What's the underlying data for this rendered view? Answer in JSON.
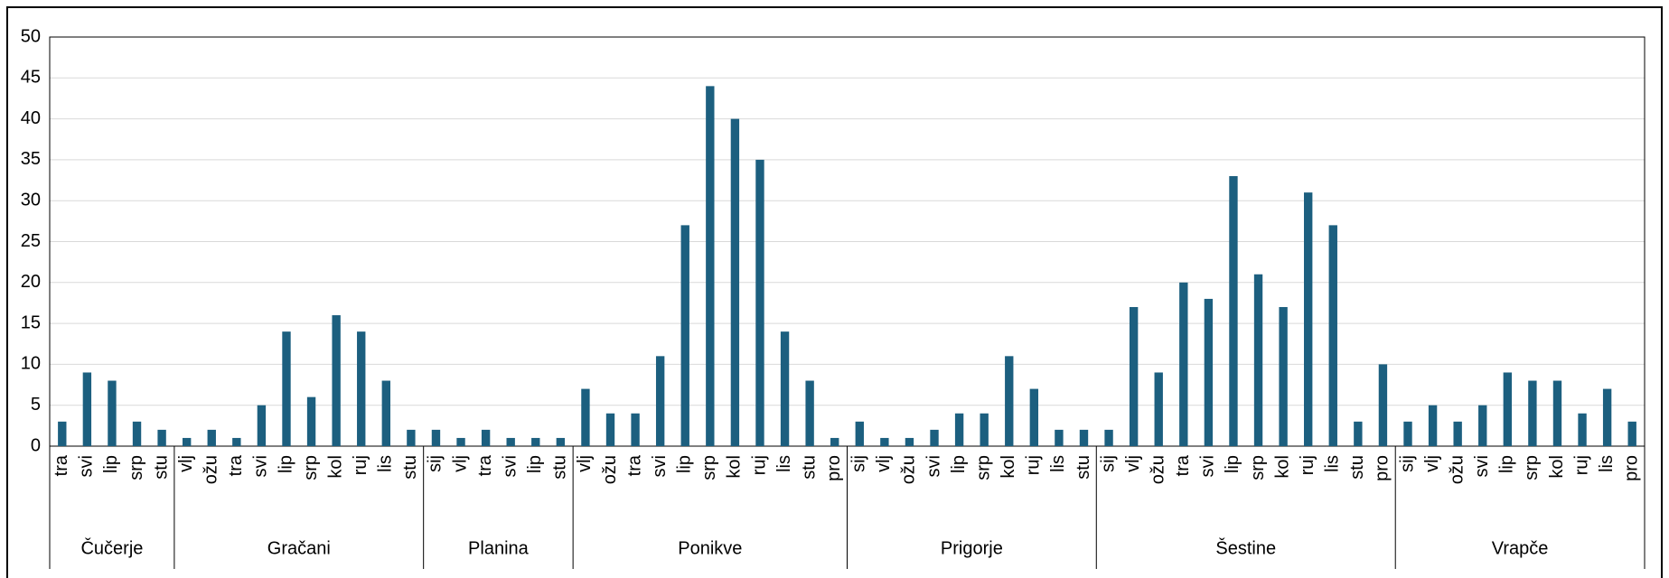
{
  "chart_data": {
    "type": "bar",
    "color": "#1c5f7f",
    "ylim": [
      0,
      50
    ],
    "yticks": [
      0,
      5,
      10,
      15,
      20,
      25,
      30,
      35,
      40,
      45,
      50
    ],
    "grid": true,
    "groups": [
      {
        "name": "Čučerje",
        "categories": [
          "tra",
          "svi",
          "lip",
          "srp",
          "stu"
        ],
        "values": [
          3,
          9,
          8,
          3,
          2
        ]
      },
      {
        "name": "Gračani",
        "categories": [
          "vlj",
          "ožu",
          "tra",
          "svi",
          "lip",
          "srp",
          "kol",
          "ruj",
          "lis",
          "stu"
        ],
        "values": [
          1,
          2,
          1,
          5,
          14,
          6,
          16,
          14,
          8,
          2
        ]
      },
      {
        "name": "Planina",
        "categories": [
          "sij",
          "vlj",
          "tra",
          "svi",
          "lip",
          "stu"
        ],
        "values": [
          2,
          1,
          2,
          1,
          1,
          1
        ]
      },
      {
        "name": "Ponikve",
        "categories": [
          "vlj",
          "ožu",
          "tra",
          "svi",
          "lip",
          "srp",
          "kol",
          "ruj",
          "lis",
          "stu",
          "pro"
        ],
        "values": [
          7,
          4,
          4,
          11,
          27,
          44,
          40,
          35,
          14,
          8,
          1
        ]
      },
      {
        "name": "Prigorje",
        "categories": [
          "sij",
          "vlj",
          "ožu",
          "svi",
          "lip",
          "srp",
          "kol",
          "ruj",
          "lis",
          "stu"
        ],
        "values": [
          3,
          1,
          1,
          2,
          4,
          4,
          11,
          7,
          2,
          2
        ]
      },
      {
        "name": "Šestine",
        "categories": [
          "sij",
          "vlj",
          "ožu",
          "tra",
          "svi",
          "lip",
          "srp",
          "kol",
          "ruj",
          "lis",
          "stu",
          "pro"
        ],
        "values": [
          2,
          17,
          9,
          20,
          18,
          33,
          21,
          17,
          31,
          27,
          3,
          10
        ]
      },
      {
        "name": "Vrapče",
        "categories": [
          "sij",
          "vlj",
          "ožu",
          "svi",
          "lip",
          "srp",
          "kol",
          "ruj",
          "lis",
          "pro"
        ],
        "values": [
          3,
          5,
          3,
          5,
          9,
          8,
          8,
          4,
          7,
          3
        ]
      }
    ]
  }
}
